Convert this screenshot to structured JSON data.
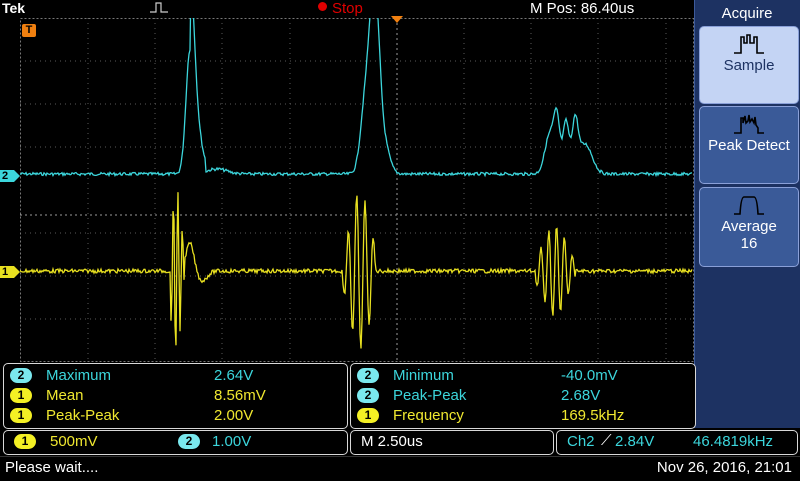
{
  "header": {
    "brand": "Tek",
    "run_state": "Stop",
    "horizontal_position": "M Pos: 86.40us"
  },
  "side_menu": {
    "title": "Acquire",
    "buttons": [
      {
        "label": "Sample",
        "icon": "sample-waveform-icon",
        "selected": true
      },
      {
        "label": "Peak Detect",
        "icon": "peak-detect-waveform-icon",
        "selected": false
      },
      {
        "label": "Average",
        "sub_label": "16",
        "icon": "average-waveform-icon",
        "selected": false
      }
    ]
  },
  "markers": {
    "trigger_position": "T",
    "ch2": "2",
    "ch1": "1"
  },
  "measurements": {
    "left": [
      {
        "channel": "2",
        "name": "Maximum",
        "value": "2.64V"
      },
      {
        "channel": "1",
        "name": "Mean",
        "value": "8.56mV"
      },
      {
        "channel": "1",
        "name": "Peak-Peak",
        "value": "2.00V"
      }
    ],
    "right": [
      {
        "channel": "2",
        "name": "Minimum",
        "value": "-40.0mV"
      },
      {
        "channel": "2",
        "name": "Peak-Peak",
        "value": "2.68V"
      },
      {
        "channel": "1",
        "name": "Frequency",
        "value": "169.5kHz"
      }
    ]
  },
  "status": {
    "ch1_badge": "1",
    "ch1_scale": "500mV",
    "ch2_badge": "2",
    "ch2_scale": "1.00V",
    "timebase": "M 2.50us",
    "trigger_source": "Ch2",
    "trigger_slope": "⟋",
    "trigger_level": "2.84V",
    "trigger_frequency": "46.4819kHz",
    "message": "Please wait....",
    "datetime": "Nov 26, 2016, 21:01"
  },
  "colors": {
    "ch1": "#f0e830",
    "ch2": "#3cd6dc",
    "trigger": "#f08010",
    "panel": "#1d3262"
  }
}
